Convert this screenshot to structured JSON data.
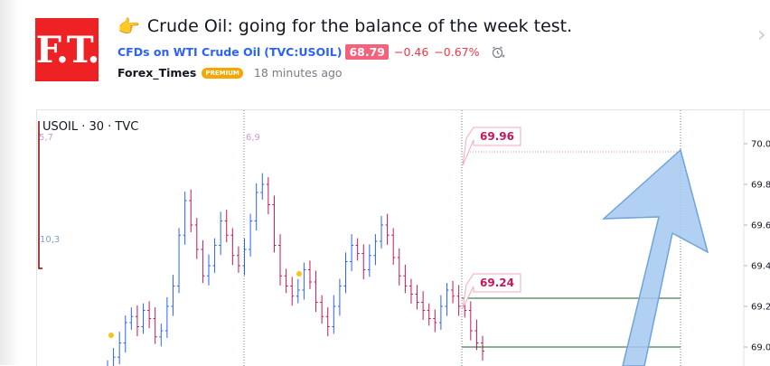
{
  "post": {
    "title": "Crude Oil: going for the balance of the week test.",
    "title_icon": "pointing-hand-icon",
    "instrument": "CFDs on WTI Crude Oil",
    "symbol": "(TVC:USOIL)",
    "price": "68.79",
    "change": "−0.46",
    "change_pct": "−0.67%",
    "author": "Forex_Times",
    "author_badge": "PREMIUM",
    "time_ago": "18 minutes ago",
    "logo_text": "F.T."
  },
  "chart": {
    "legend": "USOIL · 30 · TVC",
    "marker_labels": [
      "5,7",
      "6,9",
      "10,3"
    ],
    "callouts": [
      {
        "text": "69.96",
        "value": 69.96
      },
      {
        "text": "69.24",
        "value": 69.24
      }
    ],
    "levels": [
      69.24,
      69.0
    ],
    "colors": {
      "up": "#2962ff",
      "down": "#c2185b",
      "level": "#1b5e20",
      "arrow": "#a5c8f0"
    }
  },
  "chart_data": {
    "type": "line",
    "title": "USOIL · 30 · TVC",
    "yticks": [
      "70.0",
      "69.8",
      "69.6",
      "69.4",
      "69.2",
      "69.0"
    ],
    "ylim": [
      68.98,
      70.05
    ],
    "annotations": [
      "69.96",
      "69.24"
    ],
    "series": [
      {
        "values": [
          68.9,
          68.95,
          69.02,
          69.12,
          69.15,
          69.1,
          69.18,
          69.14,
          69.05,
          69.08,
          69.2,
          69.3,
          69.55,
          69.72,
          69.6,
          69.48,
          69.35,
          69.4,
          69.5,
          69.62,
          69.55,
          69.45,
          69.4,
          69.48,
          69.62,
          69.76,
          69.8,
          69.7,
          69.5,
          69.35,
          69.3,
          69.25,
          69.28,
          69.38,
          69.32,
          69.22,
          69.15,
          69.1,
          69.2,
          69.3,
          69.42,
          69.5,
          69.46,
          69.38,
          69.45,
          69.52,
          69.6,
          69.55,
          69.44,
          69.35,
          69.3,
          69.26,
          69.22,
          69.18,
          69.14,
          69.12,
          69.2,
          69.28,
          69.25,
          69.2,
          69.18,
          69.08,
          69.02,
          68.98
        ]
      }
    ]
  }
}
